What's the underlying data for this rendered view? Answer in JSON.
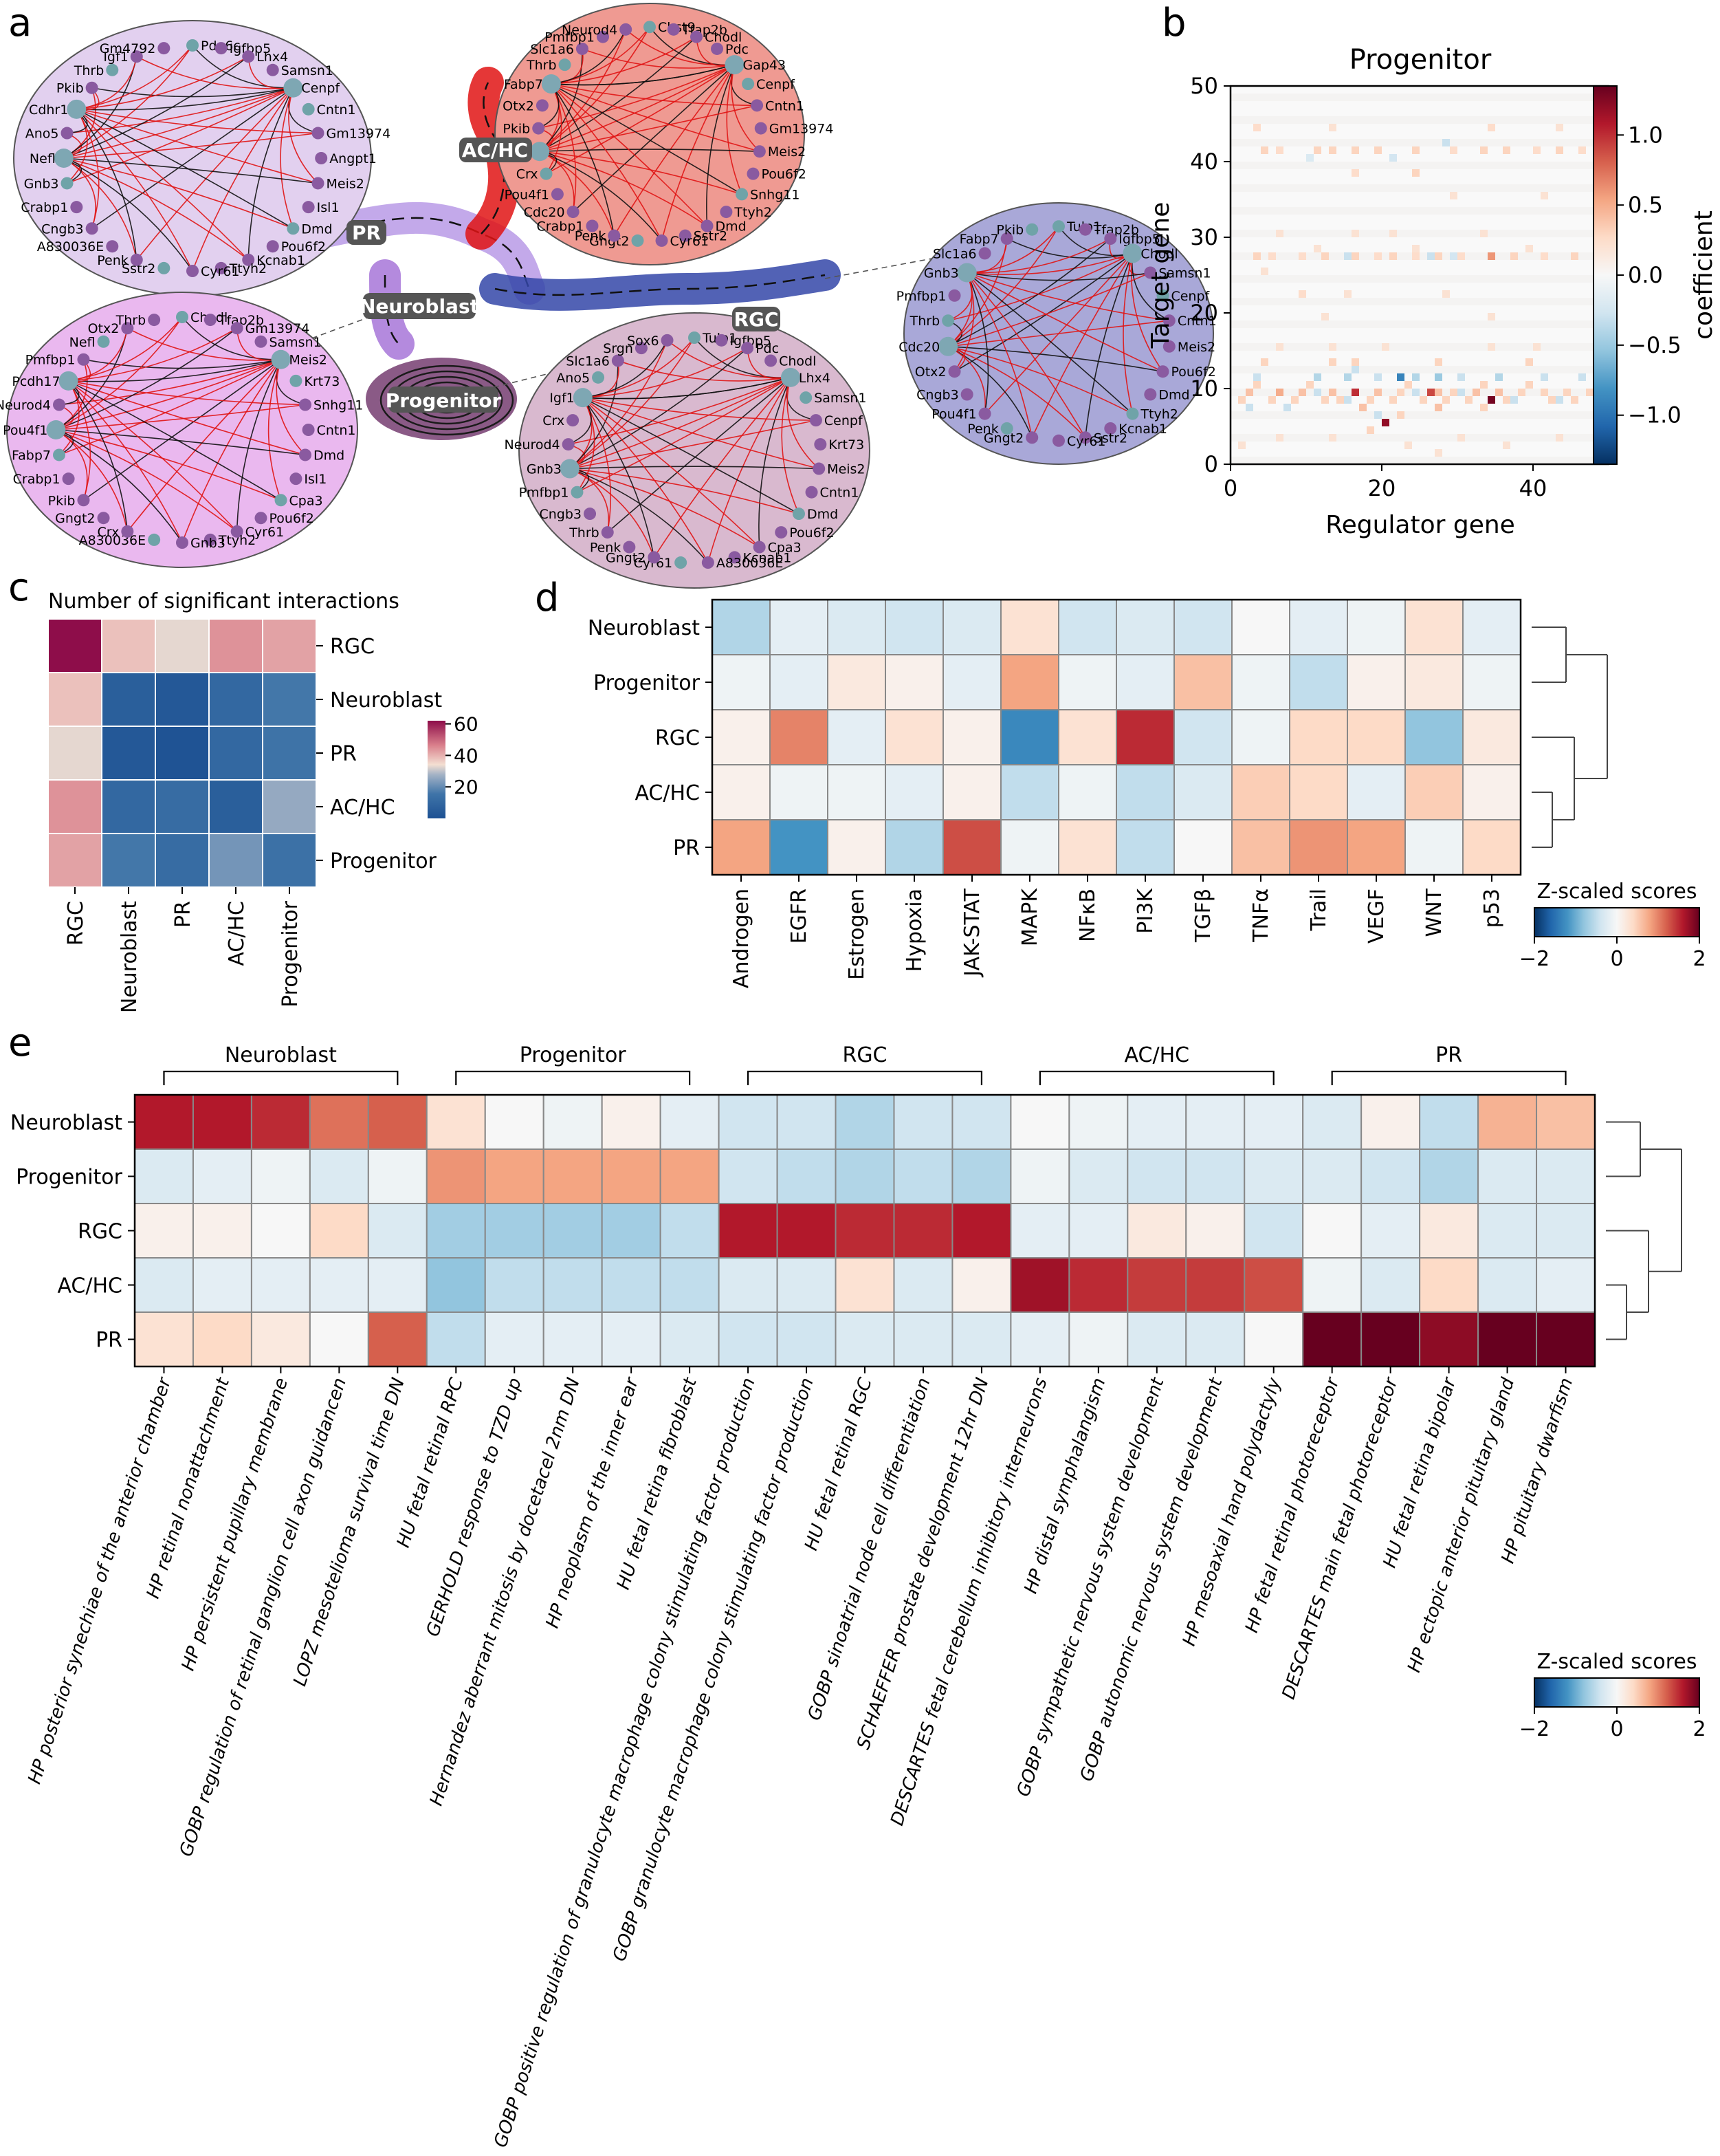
{
  "panels": {
    "a": "a",
    "b": "b",
    "c": "c",
    "d": "d",
    "e": "e"
  },
  "panel_a": {
    "state_labels": [
      "AC/HC",
      "PR",
      "Neuroblast",
      "RGC",
      "Progenitor"
    ],
    "networks": [
      {
        "genes": [
          "Pde6c",
          "Igfbp5",
          "Lhx4",
          "Samsn1",
          "Cenpf",
          "Cntn1",
          "Gm13974",
          "Angpt1",
          "Meis2",
          "Isl1",
          "Dmd",
          "Pou6f2",
          "Kcnab1",
          "Ttyh2",
          "Cyr61",
          "Sstr2",
          "Penk",
          "A830036E",
          "Cngb3",
          "Crabp1",
          "Gnb3",
          "Nefl",
          "Ano5",
          "Cdhr1",
          "Pkib",
          "Thrb",
          "Igf1",
          "Gm4792"
        ],
        "color": "#e2d0ef"
      },
      {
        "genes": [
          "Chst9",
          "Tfap2b",
          "Chodl",
          "Pdc",
          "Gap43",
          "Cenpf",
          "Cntn1",
          "Gm13974",
          "Meis2",
          "Pou6f2",
          "Snhg11",
          "Ttyh2",
          "Dmd",
          "Sstr2",
          "Cyr61",
          "Gngt2",
          "Penk",
          "Crabp1",
          "Cdc20",
          "Pou4f1",
          "Crx",
          "Pcdh17",
          "Pkib",
          "Otx2",
          "Fabp7",
          "Thrb",
          "Slc1a6",
          "Pmfbp1",
          "Neurod4"
        ],
        "color": "#ef9a92"
      },
      {
        "genes": [
          "Tulp1",
          "Tfap2b",
          "Igfbp5",
          "Chodl",
          "Samsn1",
          "Cenpf",
          "Cntn1",
          "Meis2",
          "Pou6f2",
          "Dmd",
          "Ttyh2",
          "Kcnab1",
          "Sstr2",
          "Cyr61",
          "Gngt2",
          "Penk",
          "Pou4f1",
          "Cngb3",
          "Otx2",
          "Cdc20",
          "Thrb",
          "Pmfbp1",
          "Gnb3",
          "Slc1a6",
          "Fabp7",
          "Pkib"
        ],
        "color": "#a9a8d8"
      },
      {
        "genes": [
          "Chodl",
          "Tfap2b",
          "Gm13974",
          "Samsn1",
          "Meis2",
          "Krt73",
          "Snhg11",
          "Cntn1",
          "Dmd",
          "Isl1",
          "Cpa3",
          "Pou6f2",
          "Cyr61",
          "Ttyh2",
          "Gnb3",
          "A830036E",
          "Crx",
          "Gngt2",
          "Pkib",
          "Crabp1",
          "Fabp7",
          "Pou4f1",
          "Neurod4",
          "Pcdh17",
          "Pmfbp1",
          "Nefl",
          "Otx2",
          "Thrb"
        ],
        "color": "#eab8ef"
      },
      {
        "genes": [
          "Tulp1",
          "Igfbp5",
          "Pdc",
          "Chodl",
          "Lhx4",
          "Samsn1",
          "Cenpf",
          "Krt73",
          "Meis2",
          "Cntn1",
          "Dmd",
          "Pou6f2",
          "Cpa3",
          "Kcnab1",
          "A830036E",
          "Cyr61",
          "Gngt2",
          "Penk",
          "Thrb",
          "Cngb3",
          "Pmfbp1",
          "Gnb3",
          "Neurod4",
          "Crx",
          "Igf1",
          "Ano5",
          "Slc1a6",
          "Srgn",
          "Sox6"
        ],
        "color": "#d9b9cf"
      }
    ]
  },
  "chart_data": [
    {
      "type": "heatmap",
      "title": "Progenitor",
      "xlabel": "Regulator gene",
      "ylabel": "Target gene",
      "colorbar_label": "coefficient",
      "xlim": [
        0,
        50
      ],
      "ylim": [
        0,
        50
      ],
      "x_ticks": [
        0,
        20,
        40
      ],
      "y_ticks": [
        0,
        10,
        20,
        30,
        40,
        50
      ],
      "colorbar_ticks": [
        1.0,
        0.5,
        0.0,
        -0.5,
        -1.0
      ],
      "colorbar_tick_labels": [
        "1.0",
        "0.5",
        "0.0",
        "−0.5",
        "−1.0"
      ],
      "vmin": -1.35,
      "vmax": 1.35,
      "cells": [
        [
          20,
          5,
          1.2
        ],
        [
          34,
          8,
          1.3
        ],
        [
          16,
          9,
          1.0
        ],
        [
          26,
          9,
          0.9
        ],
        [
          22,
          11,
          -0.9
        ],
        [
          27,
          11,
          -0.5
        ],
        [
          3,
          11,
          -0.3
        ],
        [
          11,
          11,
          -0.4
        ],
        [
          15,
          11,
          -0.4
        ],
        [
          19,
          11,
          -0.3
        ],
        [
          24,
          11,
          -0.4
        ],
        [
          30,
          11,
          -0.3
        ],
        [
          35,
          11,
          -0.4
        ],
        [
          41,
          11,
          -0.3
        ],
        [
          46,
          11,
          -0.3
        ],
        [
          1,
          8,
          0.3
        ],
        [
          2,
          9,
          0.4
        ],
        [
          3,
          10,
          0.3
        ],
        [
          5,
          8,
          0.3
        ],
        [
          6,
          9,
          0.5
        ],
        [
          8,
          8,
          0.3
        ],
        [
          9,
          9,
          0.4
        ],
        [
          10,
          10,
          0.3
        ],
        [
          12,
          8,
          0.3
        ],
        [
          13,
          9,
          0.4
        ],
        [
          14,
          8,
          0.3
        ],
        [
          17,
          7,
          0.4
        ],
        [
          18,
          8,
          0.3
        ],
        [
          19,
          9,
          0.4
        ],
        [
          21,
          8,
          0.3
        ],
        [
          22,
          9,
          0.3
        ],
        [
          23,
          10,
          0.3
        ],
        [
          25,
          8,
          0.3
        ],
        [
          27,
          9,
          0.4
        ],
        [
          28,
          8,
          0.3
        ],
        [
          29,
          9,
          0.3
        ],
        [
          31,
          8,
          0.3
        ],
        [
          32,
          9,
          0.4
        ],
        [
          33,
          10,
          0.3
        ],
        [
          35,
          9,
          0.4
        ],
        [
          36,
          8,
          0.3
        ],
        [
          38,
          9,
          0.3
        ],
        [
          39,
          10,
          0.3
        ],
        [
          41,
          9,
          0.3
        ],
        [
          42,
          8,
          0.3
        ],
        [
          44,
          9,
          0.3
        ],
        [
          45,
          8,
          0.3
        ],
        [
          47,
          9,
          0.3
        ],
        [
          48,
          8,
          0.3
        ],
        [
          2,
          7,
          -0.3
        ],
        [
          7,
          7,
          -0.3
        ],
        [
          11,
          9,
          -0.3
        ],
        [
          15,
          8,
          -0.3
        ],
        [
          24,
          9,
          -0.3
        ],
        [
          30,
          9,
          -0.3
        ],
        [
          37,
          8,
          -0.3
        ],
        [
          43,
          8,
          -0.3
        ],
        [
          3,
          27,
          0.3
        ],
        [
          5,
          27,
          0.25
        ],
        [
          9,
          27,
          0.25
        ],
        [
          12,
          27,
          0.3
        ],
        [
          16,
          27,
          0.3
        ],
        [
          19,
          27,
          0.25
        ],
        [
          21,
          27,
          0.3
        ],
        [
          24,
          27,
          0.25
        ],
        [
          27,
          27,
          0.3
        ],
        [
          30,
          27,
          0.25
        ],
        [
          34,
          27,
          0.6
        ],
        [
          37,
          27,
          0.3
        ],
        [
          41,
          27,
          0.25
        ],
        [
          45,
          27,
          0.3
        ],
        [
          15,
          27,
          -0.3
        ],
        [
          26,
          27,
          -0.3
        ],
        [
          29,
          27,
          -0.25
        ],
        [
          4,
          41,
          0.3
        ],
        [
          6,
          41,
          0.25
        ],
        [
          11,
          41,
          0.3
        ],
        [
          13,
          41,
          0.3
        ],
        [
          16,
          41,
          0.3
        ],
        [
          19,
          41,
          0.3
        ],
        [
          24,
          41,
          0.3
        ],
        [
          29,
          41,
          0.25
        ],
        [
          33,
          41,
          0.3
        ],
        [
          36,
          41,
          0.3
        ],
        [
          40,
          41,
          0.25
        ],
        [
          43,
          41,
          0.3
        ],
        [
          46,
          41,
          0.25
        ],
        [
          21,
          40,
          -0.25
        ],
        [
          28,
          42,
          -0.3
        ],
        [
          10,
          40,
          -0.2
        ],
        [
          3,
          44,
          0.25
        ],
        [
          13,
          44,
          0.2
        ],
        [
          34,
          44,
          0.25
        ],
        [
          43,
          44,
          0.2
        ],
        [
          16,
          38,
          0.25
        ],
        [
          24,
          38,
          0.3
        ],
        [
          29,
          35,
          0.2
        ],
        [
          41,
          35,
          0.2
        ],
        [
          6,
          30,
          0.2
        ],
        [
          16,
          30,
          0.2
        ],
        [
          21,
          30,
          0.2
        ],
        [
          33,
          30,
          0.2
        ],
        [
          11,
          28,
          0.2
        ],
        [
          24,
          28,
          0.2
        ],
        [
          39,
          28,
          0.2
        ],
        [
          4,
          25,
          0.2
        ],
        [
          9,
          22,
          0.25
        ],
        [
          15,
          22,
          0.2
        ],
        [
          28,
          22,
          0.2
        ],
        [
          12,
          19,
          0.2
        ],
        [
          34,
          19,
          0.2
        ],
        [
          6,
          15,
          0.2
        ],
        [
          13,
          15,
          0.2
        ],
        [
          20,
          15,
          0.2
        ],
        [
          34,
          15,
          0.2
        ],
        [
          40,
          15,
          0.2
        ],
        [
          4,
          13,
          0.3
        ],
        [
          13,
          13,
          0.3
        ],
        [
          27,
          13,
          0.3
        ],
        [
          39,
          13,
          0.3
        ],
        [
          1,
          2,
          0.2
        ],
        [
          6,
          3,
          0.2
        ],
        [
          13,
          3,
          0.2
        ],
        [
          18,
          4,
          0.3
        ],
        [
          23,
          2,
          0.2
        ],
        [
          27,
          1,
          0.2
        ],
        [
          30,
          3,
          0.2
        ],
        [
          36,
          2,
          0.2
        ],
        [
          43,
          3,
          0.2
        ],
        [
          22,
          6,
          0.3
        ],
        [
          27,
          7,
          0.4
        ],
        [
          33,
          7,
          0.3
        ],
        [
          19,
          6,
          -0.3
        ],
        [
          16,
          13,
          0.3
        ],
        [
          16,
          12,
          -0.3
        ]
      ]
    },
    {
      "type": "heatmap",
      "title": "Number of significant interactions",
      "rows": [
        "RGC",
        "Neuroblast",
        "PR",
        "AC/HC",
        "Progenitor"
      ],
      "columns": [
        "RGC",
        "Neuroblast",
        "PR",
        "AC/HC",
        "Progenitor"
      ],
      "values": [
        [
          62,
          38,
          33,
          44,
          42
        ],
        [
          38,
          6,
          3,
          10,
          16
        ],
        [
          33,
          3,
          1,
          10,
          15
        ],
        [
          44,
          10,
          12,
          6,
          26
        ],
        [
          42,
          16,
          12,
          22,
          14
        ]
      ],
      "vmin": 0,
      "vmax": 62,
      "colorbar_ticks": [
        20,
        40,
        60
      ]
    },
    {
      "type": "heatmap",
      "rows": [
        "Neuroblast",
        "Progenitor",
        "RGC",
        "AC/HC",
        "PR"
      ],
      "columns": [
        "Androgen",
        "EGFR",
        "Estrogen",
        "Hypoxia",
        "JAK-STAT",
        "MAPK",
        "NFκB",
        "PI3K",
        "TGFβ",
        "TNFα",
        "Trail",
        "VEGF",
        "WNT",
        "p53"
      ],
      "values": [
        [
          -0.6,
          -0.2,
          -0.3,
          -0.4,
          -0.3,
          0.3,
          -0.4,
          -0.3,
          -0.4,
          0.0,
          -0.2,
          -0.1,
          0.3,
          -0.2
        ],
        [
          -0.1,
          -0.2,
          0.2,
          0.1,
          -0.2,
          0.8,
          -0.1,
          -0.2,
          0.6,
          -0.1,
          -0.5,
          0.1,
          0.2,
          -0.1
        ],
        [
          0.1,
          1.0,
          -0.2,
          0.3,
          0.1,
          -1.3,
          0.3,
          1.5,
          -0.4,
          -0.1,
          0.4,
          0.4,
          -0.8,
          0.2
        ],
        [
          0.1,
          -0.1,
          -0.1,
          -0.2,
          0.1,
          -0.5,
          -0.1,
          -0.5,
          -0.3,
          0.5,
          0.4,
          -0.2,
          0.5,
          0.1
        ],
        [
          0.8,
          -1.2,
          0.1,
          -0.6,
          1.3,
          -0.1,
          0.3,
          -0.5,
          0.0,
          0.6,
          0.9,
          0.8,
          -0.1,
          0.4
        ]
      ],
      "vmin": -2,
      "vmax": 2,
      "colorbar_label": "Z-scaled scores",
      "colorbar_ticks": [
        -2,
        0,
        2
      ]
    },
    {
      "type": "heatmap",
      "rows": [
        "Neuroblast",
        "Progenitor",
        "RGC",
        "AC/HC",
        "PR"
      ],
      "column_groups": [
        {
          "name": "Neuroblast",
          "start": 0,
          "end": 4
        },
        {
          "name": "Progenitor",
          "start": 5,
          "end": 9
        },
        {
          "name": "RGC",
          "start": 10,
          "end": 14
        },
        {
          "name": "AC/HC",
          "start": 15,
          "end": 19
        },
        {
          "name": "PR",
          "start": 20,
          "end": 24
        }
      ],
      "columns": [
        "HP posterior synechiae of the anterior chamber",
        "HP retinal nonattachment",
        "HP persistent pupillary membrane",
        "GOBP regulation of retinal ganglion cell axon guidancen",
        "LOPZ mesotelioma survival time DN",
        "HU fetal retinal RPC",
        "GERHOLD response to TZD up",
        "Hernandez aberrant mitosis by docetacel 2nm DN",
        "HP neoplasm of the inner ear",
        "HU fetal retina fibroblast",
        "GOBP positive regulation of granulocyte macrophage colony stimulating factor production",
        "GOBP granulocyte macrophage colony stimulating factor production",
        "HU fetal retinal RGC",
        "GOBP sinoatrial node cell differentiation",
        "SCHAEFFER prostate development 12hr DN",
        "DESCARTES fetal cerebellum inhibitory interneurons",
        "HP distal symphalangism",
        "GOBP sympathetic nervous system development",
        "GOBP autonomic nervous system development",
        "HP mesoaxial hand polydactyly",
        "HP fetal retinal photoreceptor",
        "DESCARTES main fetal photoreceptor",
        "HU fetal retina bipolar",
        "HP ectopic anterior pituitary gland",
        "HP pituitary dwarfism"
      ],
      "values": [
        [
          1.6,
          1.6,
          1.5,
          1.1,
          1.2,
          0.3,
          0.0,
          -0.1,
          0.1,
          -0.2,
          -0.4,
          -0.4,
          -0.6,
          -0.4,
          -0.4,
          0.0,
          -0.1,
          -0.2,
          -0.2,
          -0.2,
          -0.3,
          0.1,
          -0.5,
          0.7,
          0.6
        ],
        [
          -0.3,
          -0.2,
          -0.1,
          -0.3,
          -0.1,
          0.9,
          0.8,
          0.8,
          0.8,
          0.8,
          -0.4,
          -0.5,
          -0.6,
          -0.5,
          -0.6,
          -0.1,
          -0.3,
          -0.4,
          -0.4,
          -0.3,
          -0.3,
          -0.4,
          -0.6,
          -0.3,
          -0.3
        ],
        [
          0.1,
          0.1,
          0.0,
          0.4,
          -0.3,
          -0.7,
          -0.7,
          -0.7,
          -0.7,
          -0.5,
          1.6,
          1.6,
          1.5,
          1.5,
          1.6,
          -0.2,
          -0.2,
          0.2,
          0.1,
          -0.4,
          0.0,
          -0.2,
          0.2,
          -0.3,
          -0.3
        ],
        [
          -0.3,
          -0.2,
          -0.2,
          -0.2,
          -0.2,
          -0.8,
          -0.5,
          -0.5,
          -0.5,
          -0.5,
          -0.3,
          -0.3,
          0.3,
          -0.3,
          0.1,
          1.7,
          1.5,
          1.4,
          1.4,
          1.3,
          -0.1,
          -0.3,
          0.4,
          -0.3,
          -0.2
        ],
        [
          0.3,
          0.4,
          0.2,
          0.0,
          1.2,
          -0.5,
          -0.2,
          -0.2,
          -0.2,
          -0.3,
          -0.4,
          -0.4,
          -0.3,
          -0.3,
          -0.3,
          -0.2,
          -0.1,
          -0.3,
          -0.3,
          0.0,
          2.0,
          2.0,
          1.8,
          2.0,
          2.0
        ]
      ],
      "vmin": -2,
      "vmax": 2,
      "colorbar_label": "Z-scaled scores",
      "colorbar_ticks": [
        -2,
        0,
        2
      ]
    }
  ]
}
